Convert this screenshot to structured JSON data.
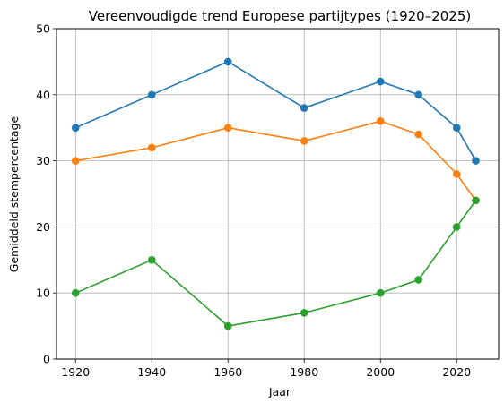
{
  "chart_data": {
    "type": "line",
    "title": "Vereenvoudigde trend Europese partijtypes (1920–2025)",
    "xlabel": "Jaar",
    "ylabel": "Gemiddeld stempercentage",
    "x": [
      1920,
      1940,
      1960,
      1980,
      2000,
      2010,
      2020,
      2025
    ],
    "xlim": [
      1915,
      2031
    ],
    "ylim": [
      0,
      50
    ],
    "xticks": [
      1920,
      1940,
      1960,
      1980,
      2000,
      2020
    ],
    "yticks": [
      0,
      10,
      20,
      30,
      40,
      50
    ],
    "grid": true,
    "marker": "circle",
    "series": [
      {
        "values": [
          35,
          40,
          45,
          38,
          42,
          40,
          35,
          30
        ],
        "color": "#1f77b4"
      },
      {
        "values": [
          30,
          32,
          35,
          33,
          36,
          34,
          28,
          24
        ],
        "color": "#ff7f0e"
      },
      {
        "values": [
          10,
          15,
          5,
          7,
          10,
          12,
          20,
          24
        ],
        "color": "#2ca02c"
      }
    ]
  }
}
